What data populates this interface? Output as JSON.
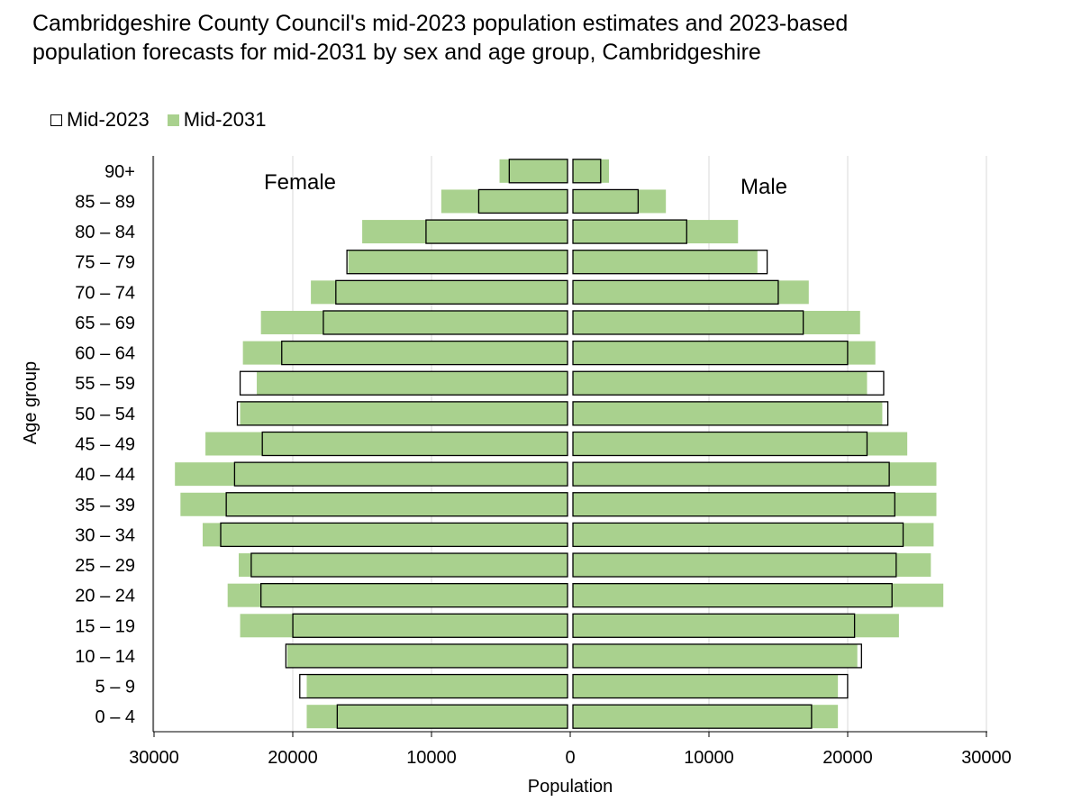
{
  "title": "Cambridgeshire County Council's mid-2023 population estimates and 2023-based population forecasts for mid-2031 by sex and age group, Cambridgeshire",
  "legend": {
    "mid2023": "Mid-2023",
    "mid2031": "Mid-2031"
  },
  "colors": {
    "mid2031_fill": "#a9d18e",
    "mid2023_outline": "#000000",
    "gridline": "#d9d9d9"
  },
  "chart_data": {
    "type": "bar",
    "subtype": "population-pyramid",
    "xlabel": "Population",
    "ylabel": "Age group",
    "xlim": [
      -30000,
      30000
    ],
    "x_ticks": [
      "30000",
      "20000",
      "10000",
      "0",
      "10000",
      "20000",
      "30000"
    ],
    "grid": "vertical",
    "legend_position": "top-left",
    "side_labels": {
      "left": "Female",
      "right": "Male"
    },
    "categories": [
      "0 – 4",
      "5 – 9",
      "10 – 14",
      "15 – 19",
      "20 – 24",
      "25 – 29",
      "30 – 34",
      "35 – 39",
      "40 – 44",
      "45 – 49",
      "50 – 54",
      "55 – 59",
      "60 – 64",
      "65 – 69",
      "70 – 74",
      "75 – 79",
      "80 – 84",
      "85 – 89",
      "90+"
    ],
    "series": [
      {
        "name": "Mid-2023",
        "style": "outline",
        "female": [
          16600,
          19300,
          20300,
          19800,
          22100,
          22800,
          25000,
          24600,
          24000,
          22000,
          23800,
          23600,
          20600,
          17600,
          16700,
          15900,
          10200,
          6400,
          4200
        ],
        "male": [
          17200,
          19800,
          20800,
          20300,
          23000,
          23300,
          23800,
          23200,
          22800,
          21200,
          22700,
          22400,
          19800,
          16600,
          14800,
          14000,
          8200,
          4700,
          2000
        ]
      },
      {
        "name": "Mid-2031",
        "style": "filled",
        "female": [
          18800,
          18800,
          20200,
          23600,
          24500,
          23700,
          26300,
          27900,
          28300,
          26100,
          23600,
          22400,
          23400,
          22100,
          18500,
          15800,
          14800,
          9100,
          4900
        ],
        "male": [
          19100,
          19100,
          20500,
          23500,
          26700,
          25800,
          26000,
          26200,
          26200,
          24100,
          22300,
          21200,
          21800,
          20700,
          17000,
          13300,
          11900,
          6700,
          2600
        ]
      }
    ]
  }
}
